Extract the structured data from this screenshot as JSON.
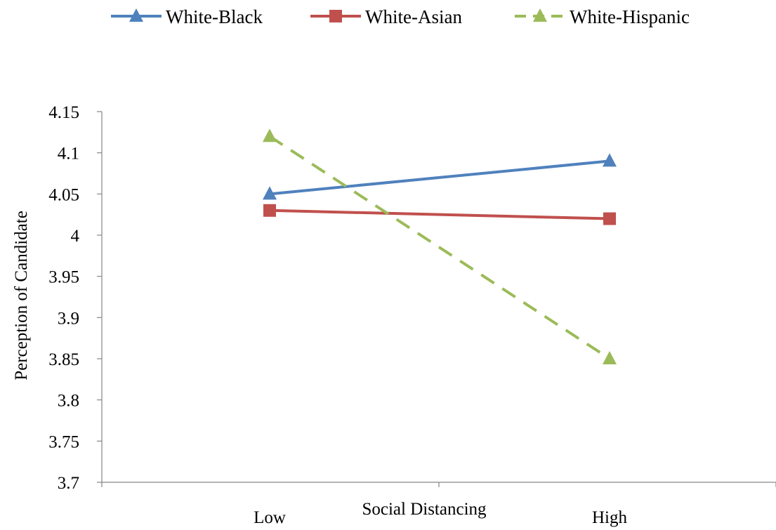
{
  "chart_data": {
    "type": "line",
    "categories": [
      "Low",
      "High"
    ],
    "xlabel": "Social Distancing",
    "ylabel": "Perception of Candidate",
    "ylim": [
      3.7,
      4.15
    ],
    "yticks": [
      "3.7",
      "3.75",
      "3.8",
      "3.85",
      "3.9",
      "3.95",
      "4",
      "4.05",
      "4.1",
      "4.15"
    ],
    "grid": false,
    "legend_position": "top",
    "series": [
      {
        "name": "White-Black",
        "values": [
          4.05,
          4.09
        ],
        "color": "#4F81BD",
        "marker": "triangle",
        "dash": "solid"
      },
      {
        "name": "White-Asian",
        "values": [
          4.03,
          4.02
        ],
        "color": "#C0504D",
        "marker": "square",
        "dash": "solid"
      },
      {
        "name": "White-Hispanic",
        "values": [
          4.12,
          3.85
        ],
        "color": "#9BBB59",
        "marker": "triangle",
        "dash": "dashed"
      }
    ]
  }
}
